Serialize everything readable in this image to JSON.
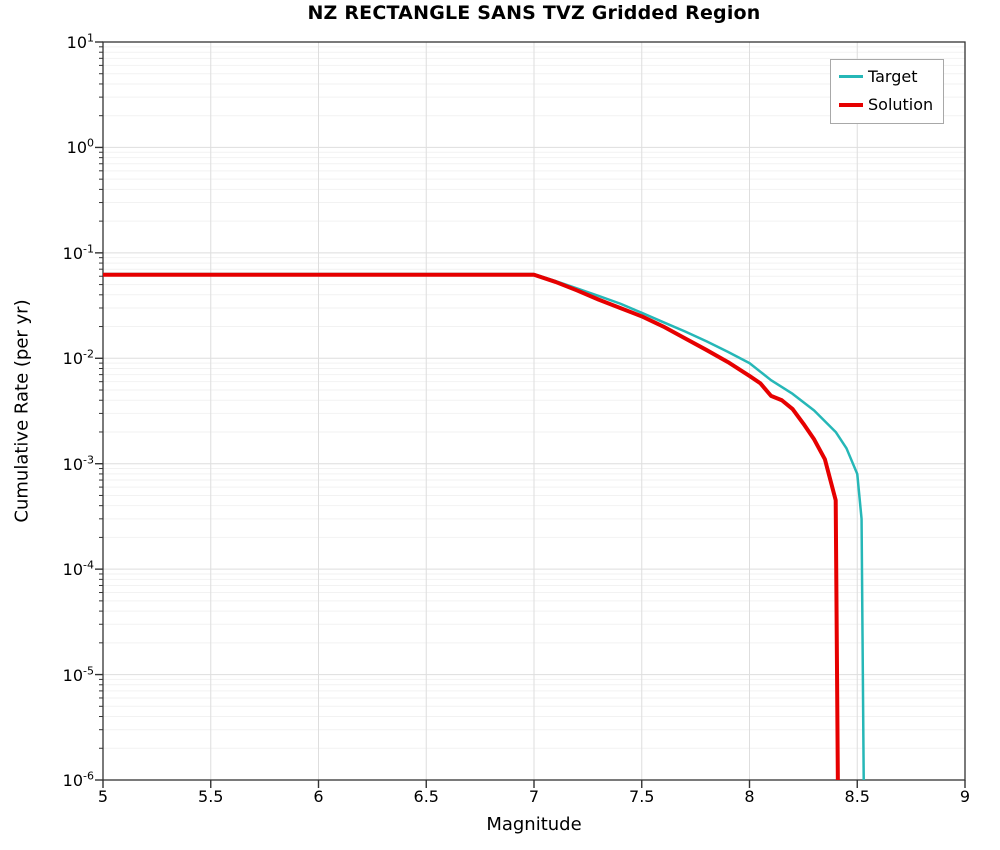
{
  "chart_data": {
    "type": "line",
    "title": "NZ RECTANGLE SANS TVZ Gridded Region",
    "xlabel": "Magnitude",
    "ylabel": "Cumulative Rate (per yr)",
    "xlim": [
      5,
      9
    ],
    "ylim": [
      1e-06,
      10
    ],
    "yscale": "log",
    "grid": true,
    "legend_position": "upper right",
    "xticks": [
      "5",
      "5.5",
      "6",
      "6.5",
      "7",
      "7.5",
      "8",
      "8.5",
      "9"
    ],
    "ytick_base": "10",
    "ytick_exponents": [
      "1",
      "0",
      "-1",
      "-2",
      "-3",
      "-4",
      "-5",
      "-6"
    ],
    "colors": {
      "target": "#26b7b7",
      "solution": "#e60000",
      "grid_major": "#dedede",
      "grid_minor": "#f2f2f2",
      "spine": "#333333"
    },
    "series": [
      {
        "name": "Target",
        "color": "#26b7b7",
        "width": 2.5,
        "x": [
          5,
          5.5,
          6,
          6.5,
          7,
          7.1,
          7.2,
          7.3,
          7.4,
          7.5,
          7.6,
          7.7,
          7.8,
          7.9,
          8.0,
          8.1,
          8.2,
          8.3,
          8.4,
          8.45,
          8.5,
          8.52,
          8.53
        ],
        "y": [
          0.063,
          0.063,
          0.063,
          0.063,
          0.063,
          0.054,
          0.046,
          0.039,
          0.033,
          0.027,
          0.022,
          0.018,
          0.0145,
          0.0115,
          0.009,
          0.0062,
          0.0046,
          0.0032,
          0.002,
          0.0014,
          0.0008,
          0.0003,
          1e-06
        ]
      },
      {
        "name": "Solution",
        "color": "#e60000",
        "width": 4,
        "x": [
          5,
          5.5,
          6,
          6.5,
          7,
          7.1,
          7.2,
          7.3,
          7.4,
          7.5,
          7.6,
          7.7,
          7.8,
          7.9,
          8.0,
          8.05,
          8.1,
          8.15,
          8.2,
          8.25,
          8.3,
          8.35,
          8.4,
          8.41
        ],
        "y": [
          0.062,
          0.062,
          0.062,
          0.062,
          0.062,
          0.053,
          0.044,
          0.036,
          0.03,
          0.025,
          0.02,
          0.0155,
          0.012,
          0.0092,
          0.0068,
          0.0058,
          0.0044,
          0.004,
          0.0033,
          0.0024,
          0.0017,
          0.0011,
          0.00045,
          1e-06
        ]
      }
    ]
  }
}
